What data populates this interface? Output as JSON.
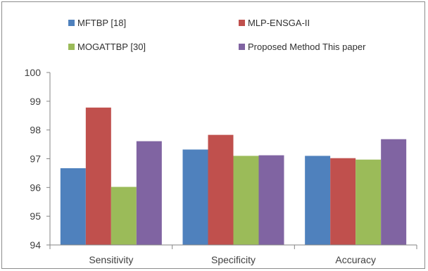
{
  "chart_data": {
    "type": "bar",
    "categories": [
      "Sensitivity",
      "Specificity",
      "Accuracy"
    ],
    "series": [
      {
        "name": "MFTBP [18]",
        "color": "#4f81bd",
        "values": [
          96.67,
          97.32,
          97.1
        ]
      },
      {
        "name": "MLP-ENSGA-II",
        "color": "#c0504d",
        "values": [
          98.78,
          97.83,
          97.02
        ]
      },
      {
        "name": "MOGATTBP [30]",
        "color": "#9bbb59",
        "values": [
          96.02,
          97.1,
          96.97
        ]
      },
      {
        "name": "Proposed Method  This paper",
        "color": "#8064a2",
        "values": [
          97.61,
          97.12,
          97.68
        ]
      }
    ],
    "ylim": [
      94,
      100
    ],
    "yticks": [
      "94",
      "95",
      "96",
      "97",
      "98",
      "99",
      "100"
    ],
    "grid": false,
    "legend_position": "top",
    "xlabel": "",
    "ylabel": ""
  }
}
